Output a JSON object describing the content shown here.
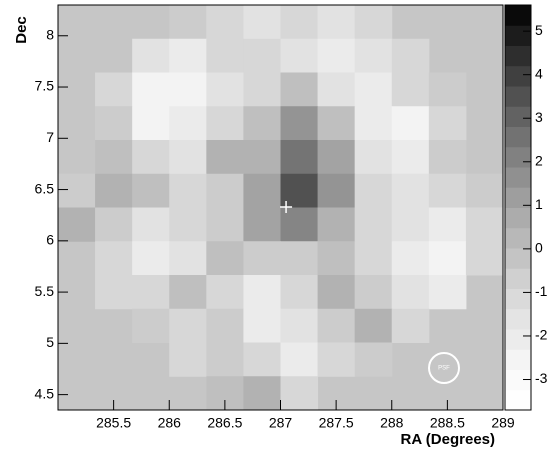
{
  "chart_data": {
    "type": "heatmap",
    "xlabel": "RA (Degrees)",
    "ylabel": "Dec",
    "xlim": [
      285.0,
      289.0
    ],
    "ylim": [
      4.35,
      8.3
    ],
    "xticks": [
      285.5,
      286,
      286.5,
      287,
      287.5,
      288,
      288.5,
      289
    ],
    "yticks": [
      4.5,
      5,
      5.5,
      6,
      6.5,
      7,
      7.5,
      8
    ],
    "zlim": [
      -3.7,
      5.6
    ],
    "zticks": [
      -3,
      -2,
      -1,
      0,
      1,
      2,
      3,
      4,
      5
    ],
    "background_color": "#c6c6c6",
    "z": [
      [
        null,
        null,
        null,
        -0.5,
        -1,
        -1.5,
        -1,
        -1.5,
        -1,
        null,
        null,
        null
      ],
      [
        null,
        null,
        -1.5,
        -2,
        -1,
        -1,
        -1.5,
        -2,
        -1.5,
        -1,
        null,
        null
      ],
      [
        null,
        -1,
        -2.5,
        -2.5,
        -1.5,
        -1,
        0,
        -1.5,
        -2,
        -1,
        -0.5,
        null
      ],
      [
        null,
        -0.5,
        -2.5,
        -2,
        -1,
        0,
        1.5,
        0,
        -2,
        -2.5,
        -1,
        null
      ],
      [
        null,
        0,
        -1,
        -1.5,
        0.5,
        0.5,
        2.5,
        1,
        -1.5,
        -2,
        -0.5,
        null
      ],
      [
        -0.5,
        0.5,
        0,
        -1,
        -0.5,
        1,
        3.5,
        1.5,
        -1,
        -1.5,
        -1,
        -0.5
      ],
      [
        0.5,
        -0.5,
        -1.5,
        -1,
        -0.5,
        1,
        2,
        0.5,
        -1,
        -1.5,
        -2,
        -1
      ],
      [
        null,
        -1,
        -2,
        -1.5,
        0,
        -0.5,
        -0.5,
        0,
        -1,
        -2,
        -2.5,
        -1
      ],
      [
        null,
        -1,
        -1,
        0,
        -1,
        -2,
        -1,
        0.5,
        -0.5,
        -1.5,
        -2,
        null
      ],
      [
        null,
        null,
        -0.5,
        -1,
        -0.5,
        -2,
        -1.5,
        -0.5,
        0.5,
        -1,
        null,
        null
      ],
      [
        null,
        null,
        null,
        -1,
        -0.5,
        -1,
        -2,
        -1,
        -0.5,
        null,
        null,
        null
      ],
      [
        null,
        null,
        null,
        null,
        0,
        0.5,
        -1,
        null,
        null,
        null,
        null,
        null
      ]
    ],
    "points": [
      {
        "x": 287.05,
        "y": 6.33
      }
    ],
    "annotation": "PSF"
  }
}
